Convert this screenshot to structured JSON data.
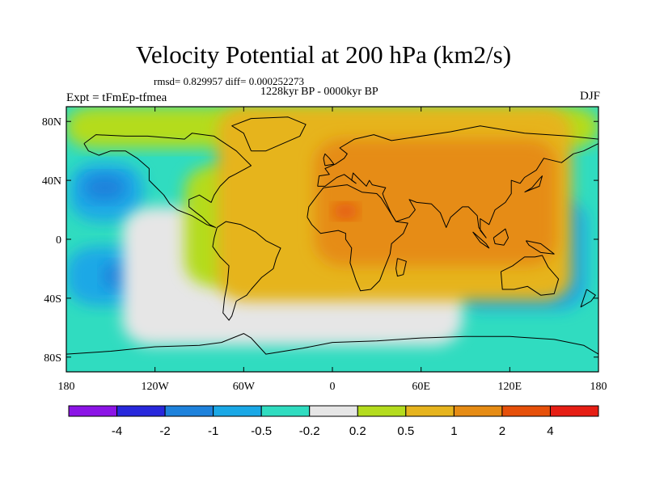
{
  "title": "Velocity Potential at 200 hPa (km2/s)",
  "stats_text": "rmsd= 0.829957 diff= 0.000252273",
  "period_text": "1228kyr BP - 0000kyr BP",
  "experiment_text": "Expt = tFmEp-tfmea",
  "season_text": "DJF",
  "map": {
    "projection": "cylindrical equidistant",
    "lon_range": [
      -180,
      180
    ],
    "lat_range": [
      -90,
      90
    ],
    "x_ticks": [
      {
        "lon": -180,
        "label": "180"
      },
      {
        "lon": -120,
        "label": "120W"
      },
      {
        "lon": -60,
        "label": "60W"
      },
      {
        "lon": 0,
        "label": "0"
      },
      {
        "lon": 60,
        "label": "60E"
      },
      {
        "lon": 120,
        "label": "120E"
      },
      {
        "lon": 180,
        "label": "180"
      }
    ],
    "y_ticks": [
      {
        "lat": 80,
        "label": "80N"
      },
      {
        "lat": 40,
        "label": "40N"
      },
      {
        "lat": 0,
        "label": "0"
      },
      {
        "lat": -40,
        "label": "40S"
      },
      {
        "lat": -80,
        "label": "80S"
      }
    ],
    "fields": [
      {
        "name": "background",
        "color": "#30dcc0",
        "lon": [
          -180,
          180
        ],
        "lat": [
          -90,
          90
        ]
      },
      {
        "name": "pacific-north-low",
        "color": "#1aa8e6",
        "lon": [
          -178,
          -128
        ],
        "lat": [
          12,
          52
        ]
      },
      {
        "name": "pacific-north-low-core",
        "color": "#1e82dc",
        "lon": [
          -168,
          -140
        ],
        "lat": [
          26,
          44
        ]
      },
      {
        "name": "pacific-south-low",
        "color": "#1aa8e6",
        "lon": [
          -180,
          -120
        ],
        "lat": [
          -45,
          -5
        ]
      },
      {
        "name": "pacific-south-low-core",
        "color": "#1e82dc",
        "lon": [
          -155,
          -134
        ],
        "lat": [
          -34,
          -16
        ]
      },
      {
        "name": "indo-pacific-low",
        "color": "#1aa8e6",
        "lon": [
          82,
          172
        ],
        "lat": [
          -48,
          28
        ]
      },
      {
        "name": "indo-pacific-mid",
        "color": "#1e82dc",
        "lon": [
          103,
          148
        ],
        "lat": [
          -27,
          14
        ]
      },
      {
        "name": "maritime-low-north",
        "color": "#2040e0",
        "lon": [
          121,
          144
        ],
        "lat": [
          -4,
          14
        ]
      },
      {
        "name": "maritime-low-south",
        "color": "#2040e0",
        "lon": [
          110,
          125
        ],
        "lat": [
          -20,
          -10
        ]
      },
      {
        "name": "atlantic-neutral-band",
        "color": "#e6e6e6",
        "lon": [
          -142,
          88
        ],
        "lat": [
          -72,
          22
        ]
      },
      {
        "name": "arctic-positive",
        "color": "#b4dc1e",
        "lon": [
          -180,
          180
        ],
        "lat": [
          62,
          90
        ]
      },
      {
        "name": "americas-weak-positive",
        "color": "#b4dc1e",
        "lon": [
          -100,
          20
        ],
        "lat": [
          -32,
          50
        ]
      },
      {
        "name": "eurasia-positive",
        "color": "#e6b41e",
        "lon": [
          -78,
          162
        ],
        "lat": [
          -42,
          90
        ]
      },
      {
        "name": "africa-asia-high",
        "color": "#e68c14",
        "lon": [
          -12,
          152
        ],
        "lat": [
          -18,
          68
        ]
      },
      {
        "name": "sahara-high-core",
        "color": "#e6500a",
        "lon": [
          1,
          17
        ],
        "lat": [
          14,
          24
        ]
      }
    ],
    "coastline": [
      {
        "name": "north-america",
        "lonlat": [
          [
            -168,
            65
          ],
          [
            -160,
            71
          ],
          [
            -140,
            70
          ],
          [
            -125,
            70
          ],
          [
            -100,
            68
          ],
          [
            -95,
            72
          ],
          [
            -80,
            70
          ],
          [
            -65,
            60
          ],
          [
            -60,
            55
          ],
          [
            -55,
            50
          ],
          [
            -66,
            44
          ],
          [
            -70,
            42
          ],
          [
            -76,
            36
          ],
          [
            -80,
            30
          ],
          [
            -82,
            25
          ],
          [
            -90,
            30
          ],
          [
            -97,
            27
          ],
          [
            -97,
            22
          ],
          [
            -92,
            18
          ],
          [
            -88,
            15
          ],
          [
            -83,
            10
          ],
          [
            -79,
            8
          ],
          [
            -85,
            10
          ],
          [
            -95,
            16
          ],
          [
            -105,
            20
          ],
          [
            -110,
            24
          ],
          [
            -114,
            30
          ],
          [
            -118,
            34
          ],
          [
            -124,
            40
          ],
          [
            -124,
            48
          ],
          [
            -132,
            55
          ],
          [
            -140,
            60
          ],
          [
            -150,
            60
          ],
          [
            -158,
            57
          ],
          [
            -165,
            60
          ],
          [
            -168,
            65
          ]
        ]
      },
      {
        "name": "south-america",
        "lonlat": [
          [
            -78,
            8
          ],
          [
            -72,
            12
          ],
          [
            -62,
            10
          ],
          [
            -52,
            5
          ],
          [
            -45,
            -1
          ],
          [
            -35,
            -6
          ],
          [
            -38,
            -13
          ],
          [
            -40,
            -20
          ],
          [
            -48,
            -26
          ],
          [
            -55,
            -34
          ],
          [
            -58,
            -38
          ],
          [
            -65,
            -42
          ],
          [
            -68,
            -52
          ],
          [
            -70,
            -55
          ],
          [
            -74,
            -50
          ],
          [
            -73,
            -40
          ],
          [
            -71,
            -30
          ],
          [
            -70,
            -18
          ],
          [
            -76,
            -12
          ],
          [
            -81,
            -5
          ],
          [
            -80,
            1
          ],
          [
            -78,
            8
          ]
        ]
      },
      {
        "name": "greenland",
        "lonlat": [
          [
            -55,
            60
          ],
          [
            -45,
            60
          ],
          [
            -22,
            70
          ],
          [
            -18,
            78
          ],
          [
            -30,
            83
          ],
          [
            -55,
            82
          ],
          [
            -68,
            77
          ],
          [
            -60,
            72
          ],
          [
            -55,
            60
          ]
        ]
      },
      {
        "name": "eurasia",
        "lonlat": [
          [
            -10,
            36
          ],
          [
            -9,
            43
          ],
          [
            -2,
            44
          ],
          [
            -5,
            48
          ],
          [
            2,
            51
          ],
          [
            8,
            55
          ],
          [
            10,
            58
          ],
          [
            5,
            62
          ],
          [
            15,
            68
          ],
          [
            28,
            71
          ],
          [
            40,
            67
          ],
          [
            60,
            70
          ],
          [
            80,
            73
          ],
          [
            100,
            77
          ],
          [
            130,
            72
          ],
          [
            160,
            70
          ],
          [
            180,
            68
          ],
          [
            180,
            65
          ],
          [
            170,
            60
          ],
          [
            163,
            58
          ],
          [
            155,
            52
          ],
          [
            143,
            55
          ],
          [
            138,
            47
          ],
          [
            130,
            42
          ],
          [
            127,
            38
          ],
          [
            121,
            40
          ],
          [
            121,
            31
          ],
          [
            117,
            25
          ],
          [
            110,
            20
          ],
          [
            106,
            10
          ],
          [
            100,
            14
          ],
          [
            100,
            6
          ],
          [
            104,
            1
          ],
          [
            99,
            8
          ],
          [
            98,
            16
          ],
          [
            92,
            22
          ],
          [
            88,
            22
          ],
          [
            80,
            15
          ],
          [
            77,
            8
          ],
          [
            73,
            18
          ],
          [
            67,
            24
          ],
          [
            57,
            25
          ],
          [
            52,
            27
          ],
          [
            56,
            20
          ],
          [
            52,
            15
          ],
          [
            43,
            12
          ],
          [
            40,
            17
          ],
          [
            35,
            28
          ],
          [
            34,
            31
          ],
          [
            36,
            35
          ],
          [
            27,
            37
          ],
          [
            25,
            40
          ],
          [
            23,
            36
          ],
          [
            19,
            40
          ],
          [
            14,
            45
          ],
          [
            13,
            40
          ],
          [
            16,
            38
          ],
          [
            8,
            44
          ],
          [
            3,
            42
          ],
          [
            -5,
            36
          ],
          [
            -10,
            36
          ]
        ]
      },
      {
        "name": "africa",
        "lonlat": [
          [
            -17,
            15
          ],
          [
            -16,
            22
          ],
          [
            -10,
            30
          ],
          [
            -6,
            35
          ],
          [
            10,
            37
          ],
          [
            20,
            32
          ],
          [
            30,
            31
          ],
          [
            33,
            28
          ],
          [
            38,
            20
          ],
          [
            43,
            12
          ],
          [
            51,
            11
          ],
          [
            48,
            4
          ],
          [
            40,
            -3
          ],
          [
            39,
            -10
          ],
          [
            35,
            -20
          ],
          [
            32,
            -28
          ],
          [
            26,
            -34
          ],
          [
            19,
            -35
          ],
          [
            16,
            -28
          ],
          [
            12,
            -16
          ],
          [
            13,
            -6
          ],
          [
            9,
            0
          ],
          [
            9,
            4
          ],
          [
            4,
            6
          ],
          [
            -8,
            4
          ],
          [
            -14,
            10
          ],
          [
            -17,
            15
          ]
        ]
      },
      {
        "name": "madagascar",
        "lonlat": [
          [
            44,
            -13
          ],
          [
            50,
            -15
          ],
          [
            48,
            -24
          ],
          [
            44,
            -25
          ],
          [
            43,
            -20
          ],
          [
            44,
            -13
          ]
        ]
      },
      {
        "name": "australia",
        "lonlat": [
          [
            114,
            -22
          ],
          [
            122,
            -18
          ],
          [
            130,
            -12
          ],
          [
            137,
            -12
          ],
          [
            142,
            -11
          ],
          [
            146,
            -19
          ],
          [
            153,
            -27
          ],
          [
            150,
            -37
          ],
          [
            141,
            -38
          ],
          [
            132,
            -32
          ],
          [
            123,
            -34
          ],
          [
            115,
            -34
          ],
          [
            114,
            -22
          ]
        ]
      },
      {
        "name": "new-zealand",
        "lonlat": [
          [
            172,
            -34
          ],
          [
            178,
            -38
          ],
          [
            175,
            -42
          ],
          [
            168,
            -46
          ],
          [
            172,
            -34
          ]
        ]
      },
      {
        "name": "japan",
        "lonlat": [
          [
            130,
            32
          ],
          [
            135,
            34
          ],
          [
            140,
            36
          ],
          [
            142,
            43
          ],
          [
            140,
            41
          ],
          [
            135,
            35
          ],
          [
            130,
            32
          ]
        ]
      },
      {
        "name": "british-isles",
        "lonlat": [
          [
            -5,
            50
          ],
          [
            1,
            51
          ],
          [
            -2,
            55
          ],
          [
            -5,
            58
          ],
          [
            -6,
            55
          ],
          [
            -5,
            50
          ]
        ]
      },
      {
        "name": "borneo",
        "lonlat": [
          [
            109,
            1
          ],
          [
            117,
            7
          ],
          [
            119,
            1
          ],
          [
            116,
            -4
          ],
          [
            110,
            -3
          ],
          [
            109,
            1
          ]
        ]
      },
      {
        "name": "sumatra",
        "lonlat": [
          [
            95,
            5
          ],
          [
            104,
            -3
          ],
          [
            106,
            -6
          ],
          [
            100,
            -2
          ],
          [
            95,
            5
          ]
        ]
      },
      {
        "name": "new-guinea",
        "lonlat": [
          [
            131,
            -1
          ],
          [
            141,
            -3
          ],
          [
            150,
            -10
          ],
          [
            141,
            -9
          ],
          [
            133,
            -4
          ],
          [
            131,
            -1
          ]
        ]
      },
      {
        "name": "antarctica",
        "lonlat": [
          [
            -180,
            -78
          ],
          [
            -150,
            -76
          ],
          [
            -120,
            -73
          ],
          [
            -90,
            -72
          ],
          [
            -75,
            -70
          ],
          [
            -60,
            -64
          ],
          [
            -55,
            -67
          ],
          [
            -45,
            -78
          ],
          [
            -20,
            -74
          ],
          [
            0,
            -70
          ],
          [
            30,
            -69
          ],
          [
            60,
            -67
          ],
          [
            90,
            -66
          ],
          [
            120,
            -66
          ],
          [
            150,
            -68
          ],
          [
            170,
            -72
          ],
          [
            180,
            -78
          ]
        ]
      }
    ]
  },
  "colorbar": {
    "colors": [
      "#8c14e6",
      "#2828dc",
      "#1e82dc",
      "#1aa8e6",
      "#30dcc0",
      "#e6e6e6",
      "#b4dc1e",
      "#e6b41e",
      "#e68c14",
      "#e6500a",
      "#e61e14"
    ],
    "labels": [
      "-4",
      "-2",
      "-1",
      "-0.5",
      "-0.2",
      "0.2",
      "0.5",
      "1",
      "2",
      "4"
    ]
  }
}
